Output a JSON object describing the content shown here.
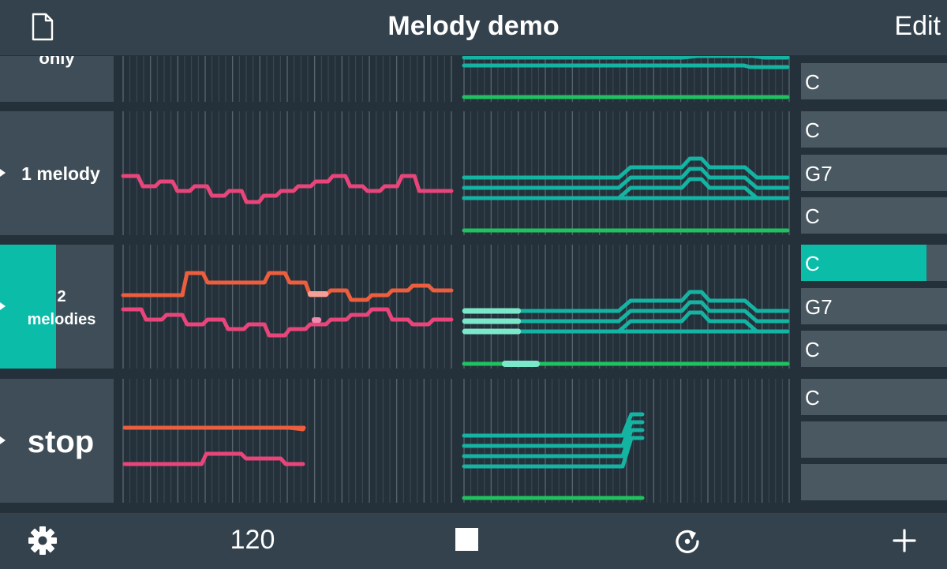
{
  "header": {
    "title": "Melody demo",
    "edit_label": "Edit",
    "doc_icon": "document-icon"
  },
  "rows": [
    {
      "label": "only",
      "chords": [
        "C"
      ]
    },
    {
      "label": "1 melody",
      "chords": [
        "C",
        "G7",
        "C"
      ]
    },
    {
      "label_line1": "2",
      "label_line2": "melodies",
      "progress": 0.49,
      "chords": [
        "C",
        "G7",
        "C"
      ],
      "chord_progress": 0.86
    },
    {
      "label": "stop",
      "chords": [
        "C",
        "",
        ""
      ]
    }
  ],
  "footer": {
    "tempo": "120",
    "settings_icon": "gear-icon",
    "stop_icon": "stop-icon",
    "loop_icon": "loop-icon",
    "add_icon": "plus-icon"
  },
  "colors": {
    "melody_pink": "#e8457a",
    "melody_orange": "#ec5e3d",
    "chord_teal": "#14b3a2",
    "bass_green": "#1fc25e",
    "highlight_teal": "#0bbca9"
  }
}
